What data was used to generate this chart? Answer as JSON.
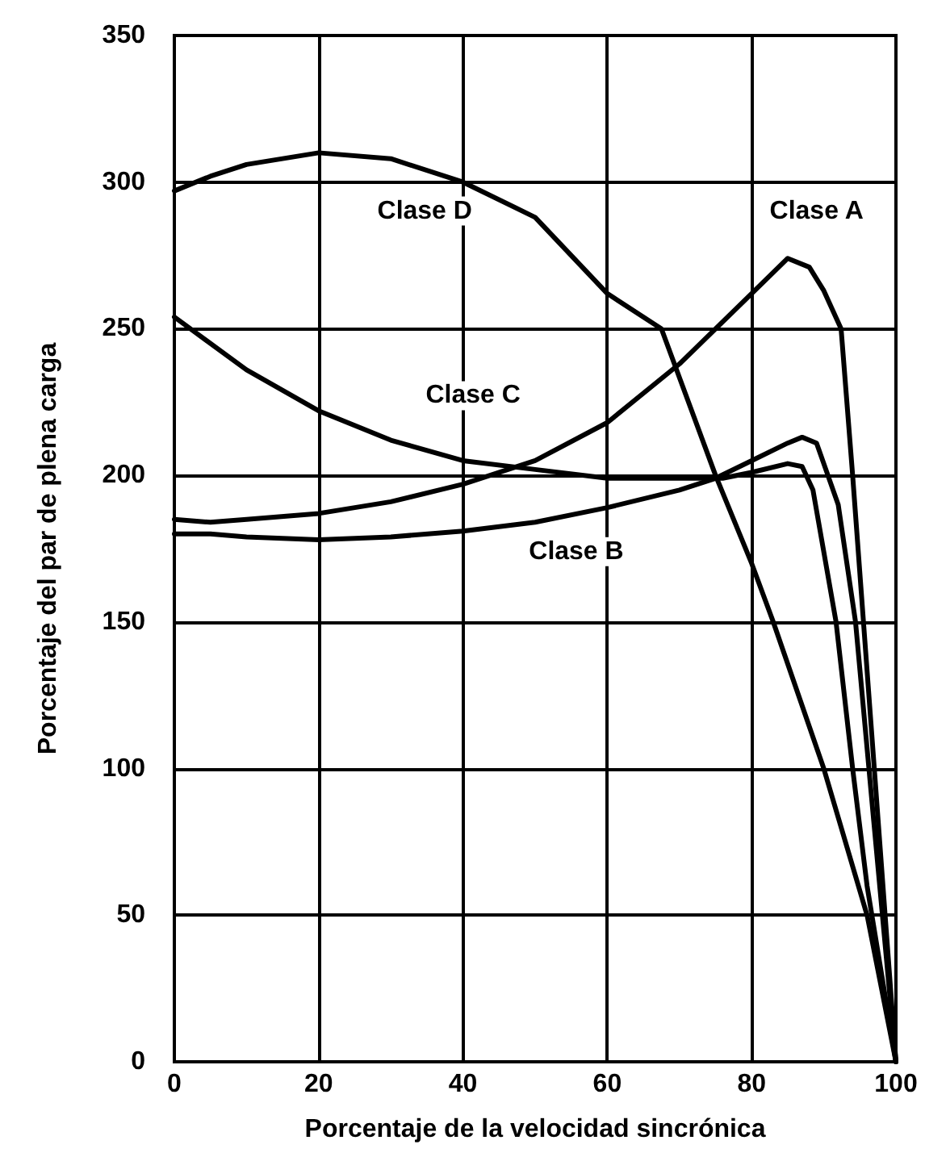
{
  "chart_data": {
    "type": "line",
    "xlabel": "Porcentaje de la velocidad sincrónica",
    "ylabel": "Porcentaje del par de plena carga",
    "xlim": [
      0,
      100
    ],
    "ylim": [
      0,
      350
    ],
    "xticks": [
      0,
      20,
      40,
      60,
      80,
      100
    ],
    "yticks": [
      0,
      50,
      100,
      150,
      200,
      250,
      300,
      350
    ],
    "grid": true,
    "marker": "none",
    "line_style": "solid",
    "series": [
      {
        "name": "Clase D",
        "color": "#000000",
        "x": [
          0,
          5,
          10,
          20,
          30,
          40,
          50,
          60,
          67.5,
          75,
          80,
          83,
          90,
          96,
          100
        ],
        "values": [
          297,
          302,
          306,
          310,
          308,
          300,
          288,
          262,
          250,
          200,
          170,
          150,
          100,
          50,
          0
        ]
      },
      {
        "name": "Clase A",
        "color": "#000000",
        "x": [
          0,
          5,
          10,
          20,
          30,
          40,
          50,
          60,
          70,
          80,
          85,
          88,
          90,
          92.4,
          94,
          95.5,
          97,
          100
        ],
        "values": [
          185,
          184,
          185,
          187,
          191,
          197,
          205,
          218,
          238,
          262,
          274,
          271,
          263,
          250,
          200,
          150,
          100,
          0
        ]
      },
      {
        "name": "Clase C",
        "color": "#000000",
        "x": [
          0,
          10,
          20,
          30,
          40,
          50,
          60,
          70,
          76,
          80,
          85,
          87,
          88.5,
          91.7,
          94,
          96,
          100
        ],
        "values": [
          254,
          236,
          222,
          212,
          205,
          202,
          199,
          199,
          199,
          201,
          204,
          203,
          195,
          150,
          100,
          60,
          0
        ]
      },
      {
        "name": "Clase B",
        "color": "#000000",
        "x": [
          0,
          5,
          10,
          20,
          30,
          40,
          50,
          60,
          70,
          75,
          80,
          85,
          87,
          89,
          92,
          94.4,
          97,
          100
        ],
        "values": [
          180,
          180,
          179,
          178,
          179,
          181,
          184,
          189,
          195,
          199,
          205,
          211,
          213,
          211,
          190,
          150,
          80,
          0
        ]
      }
    ]
  }
}
